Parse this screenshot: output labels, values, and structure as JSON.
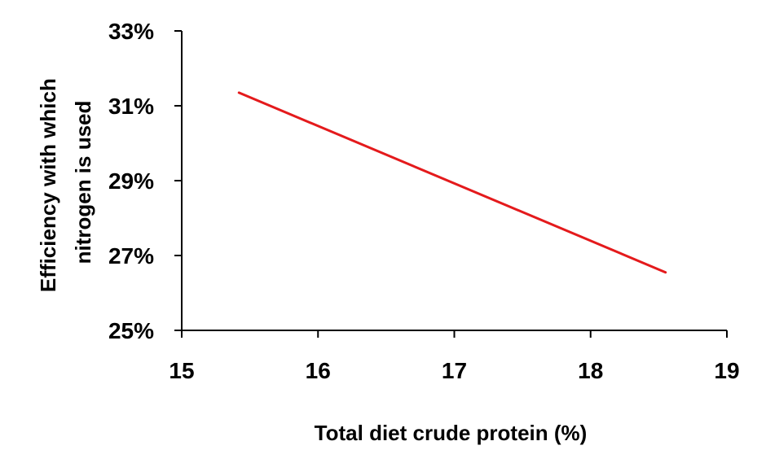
{
  "chart_data": {
    "type": "line",
    "title": "",
    "xlabel": "Total diet crude protein (%)",
    "ylabel_lines": [
      "Efficiency with which",
      "nitrogen is used"
    ],
    "xlim": [
      15,
      19
    ],
    "ylim": [
      25,
      33
    ],
    "x_ticks": [
      15,
      16,
      17,
      18,
      19
    ],
    "y_ticks": [
      25,
      27,
      29,
      31,
      33
    ],
    "y_tick_labels": [
      "25%",
      "27%",
      "29%",
      "31%",
      "33%"
    ],
    "x_tick_labels": [
      "15",
      "16",
      "17",
      "18",
      "19"
    ],
    "grid": false,
    "legend": "none",
    "series": [
      {
        "color": "#e41a1c",
        "x": [
          15.42,
          18.55
        ],
        "y": [
          31.35,
          26.55
        ]
      }
    ]
  }
}
